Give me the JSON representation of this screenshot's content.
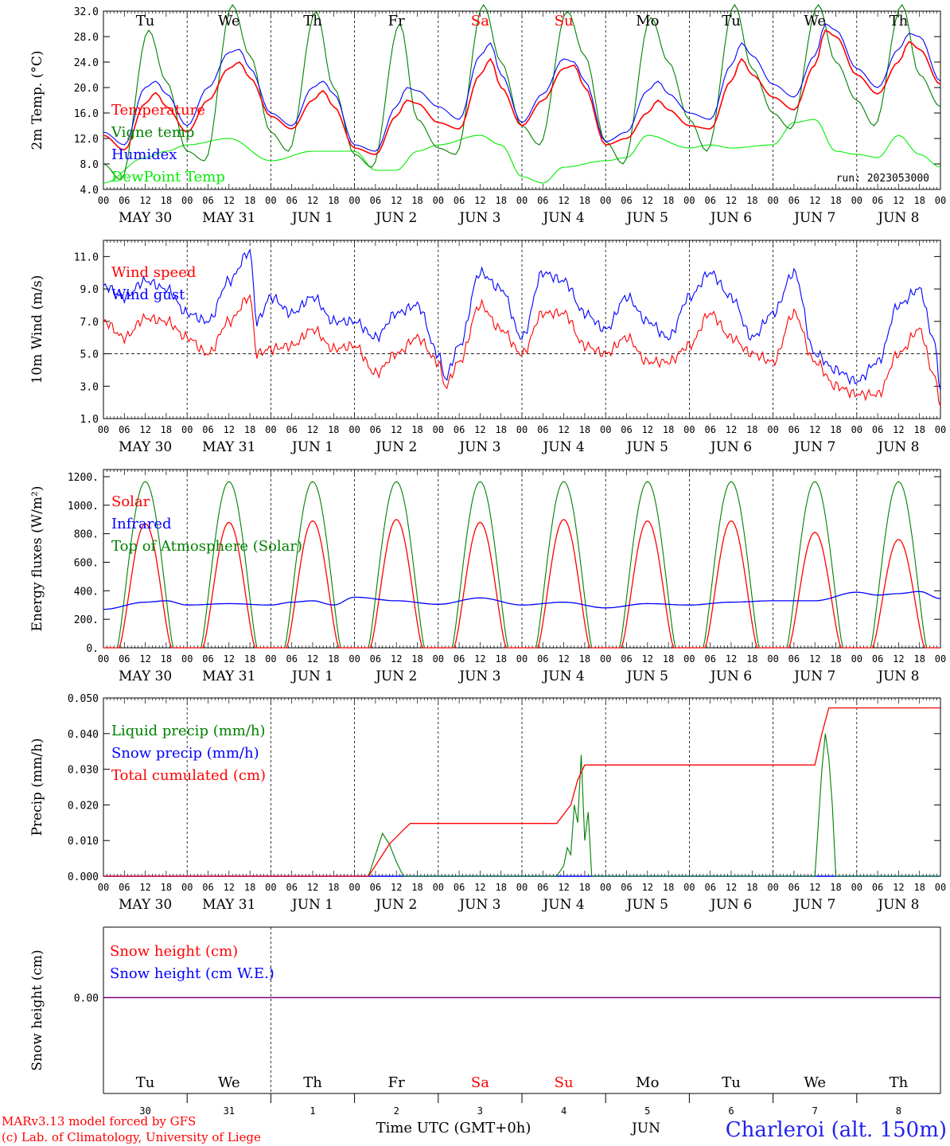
{
  "colors": {
    "red": "#ff0000",
    "blue": "#0000ff",
    "green": "#008000",
    "lime": "#00ee00",
    "purple": "#800080",
    "black": "#000000"
  },
  "days": [
    {
      "name": "Tu",
      "date": "MAY 30",
      "num": "30",
      "weekend": false
    },
    {
      "name": "We",
      "date": "MAY 31",
      "num": "31",
      "weekend": false
    },
    {
      "name": "Th",
      "date": "JUN  1",
      "num": "1",
      "weekend": false
    },
    {
      "name": "Fr",
      "date": "JUN  2",
      "num": "2",
      "weekend": false
    },
    {
      "name": "Sa",
      "date": "JUN  3",
      "num": "3",
      "weekend": true
    },
    {
      "name": "Su",
      "date": "JUN  4",
      "num": "4",
      "weekend": true
    },
    {
      "name": "Mo",
      "date": "JUN  5",
      "num": "5",
      "weekend": false
    },
    {
      "name": "Tu",
      "date": "JUN  6",
      "num": "6",
      "weekend": false
    },
    {
      "name": "We",
      "date": "JUN  7",
      "num": "7",
      "weekend": false
    },
    {
      "name": "Th",
      "date": "JUN  8",
      "num": "8",
      "weekend": false
    }
  ],
  "hour_ticks": [
    "00",
    "06",
    "12",
    "18"
  ],
  "chart_data": [
    {
      "type": "line",
      "ylabel": "2m Temp. (°C)",
      "ylim": [
        4.0,
        32.0
      ],
      "yticks": [
        "32.0",
        "28.0",
        "24.0",
        "20.0",
        "16.0",
        "12.0",
        "8.0",
        "4.0"
      ],
      "x_unit": "hours since 2023-05-30 00 UTC",
      "annotation": "run: 2023053000",
      "series": [
        {
          "name": "Temperature",
          "color": "#ff0000",
          "x": [
            0,
            6,
            12,
            15,
            18,
            24,
            30,
            36,
            39,
            42,
            48,
            54,
            60,
            63,
            66,
            72,
            78,
            84,
            87,
            90,
            96,
            102,
            108,
            111,
            114,
            120,
            126,
            132,
            135,
            138,
            144,
            150,
            156,
            159,
            162,
            168,
            174,
            180,
            183,
            186,
            192,
            198,
            204,
            207,
            210,
            216,
            222,
            228,
            231,
            234,
            240
          ],
          "y": [
            12.5,
            10.2,
            17.5,
            19.2,
            17,
            13,
            18,
            23,
            24,
            21.5,
            15.5,
            13.5,
            18,
            19.5,
            17,
            10.5,
            9.5,
            15.5,
            18,
            17.5,
            14.5,
            13.5,
            22,
            24.5,
            20,
            14,
            18,
            23,
            23.5,
            20,
            11,
            12,
            16,
            18,
            16.5,
            14,
            13.5,
            21,
            24.5,
            22,
            18.5,
            16.5,
            23.5,
            29,
            28,
            22,
            19,
            24,
            27.2,
            26,
            20.5
          ]
        },
        {
          "name": "Vigne temp",
          "color": "#008000",
          "x": [
            0,
            5,
            13,
            18,
            24,
            29,
            37,
            42,
            48,
            53,
            61,
            66,
            72,
            77,
            85,
            90,
            96,
            101,
            109,
            114,
            120,
            125,
            133,
            138,
            144,
            149,
            157,
            162,
            168,
            173,
            181,
            186,
            192,
            197,
            205,
            210,
            216,
            221,
            229,
            234,
            240
          ],
          "y": [
            8,
            5.5,
            29,
            21,
            10,
            8.5,
            33,
            25,
            13,
            10,
            32,
            20,
            9.5,
            7.5,
            30,
            15,
            10.5,
            9.5,
            33,
            24,
            14,
            11,
            32,
            25,
            11.5,
            8,
            31,
            24,
            15,
            10,
            33,
            23,
            16,
            13.5,
            33,
            24,
            18,
            14,
            33,
            22,
            17
          ]
        },
        {
          "name": "Humidex",
          "color": "#0000ff",
          "x": [
            0,
            6,
            12,
            15,
            18,
            24,
            30,
            36,
            39,
            42,
            48,
            54,
            60,
            63,
            66,
            72,
            78,
            84,
            87,
            90,
            96,
            102,
            108,
            111,
            114,
            120,
            126,
            132,
            135,
            138,
            144,
            150,
            156,
            159,
            162,
            168,
            174,
            180,
            183,
            186,
            192,
            198,
            204,
            207,
            210,
            216,
            222,
            228,
            231,
            234,
            240
          ],
          "y": [
            13,
            11,
            20,
            21,
            19,
            14,
            20,
            25.5,
            26,
            23,
            16,
            14,
            20,
            21,
            19,
            11,
            10,
            17,
            20,
            19.5,
            17,
            15,
            25,
            27,
            22,
            14.5,
            19,
            24.5,
            24,
            21,
            11.5,
            13,
            19.5,
            21,
            19,
            16,
            15,
            23.5,
            27,
            25,
            20.5,
            18.5,
            25,
            30,
            29,
            23,
            20,
            26,
            28.5,
            28,
            21
          ]
        },
        {
          "name": "DewPoint Temp",
          "color": "#00ee00",
          "x": [
            0,
            12,
            18,
            24,
            36,
            48,
            60,
            72,
            78,
            84,
            90,
            96,
            108,
            114,
            120,
            126,
            132,
            144,
            150,
            156,
            168,
            174,
            180,
            192,
            198,
            204,
            210,
            216,
            222,
            228,
            234,
            240
          ],
          "y": [
            5,
            9,
            10,
            11,
            12,
            8.5,
            10,
            10,
            7,
            7,
            10,
            11,
            12.5,
            11,
            6,
            5,
            7.5,
            8.5,
            9,
            12.5,
            10.5,
            11,
            10.5,
            11,
            14.5,
            15,
            10,
            9.5,
            9,
            12.5,
            9.5,
            7.5
          ]
        }
      ]
    },
    {
      "type": "line",
      "ylabel": "10m Wind (m/s)",
      "ylim": [
        1.0,
        12.0
      ],
      "yticks": [
        "11.0",
        "9.0",
        "7.0",
        "5.0",
        "3.0",
        "1.0"
      ],
      "reference_line": 5.0,
      "series": [
        {
          "name": "Wind speed",
          "color": "#ff0000",
          "x": [
            0,
            6,
            12,
            18,
            24,
            30,
            36,
            42,
            44,
            48,
            54,
            60,
            66,
            72,
            78,
            84,
            90,
            96,
            98,
            102,
            108,
            114,
            120,
            126,
            132,
            138,
            144,
            150,
            156,
            162,
            168,
            174,
            180,
            186,
            192,
            198,
            204,
            210,
            216,
            222,
            228,
            234,
            238,
            240
          ],
          "y": [
            7,
            6,
            7.2,
            7,
            6,
            5,
            7,
            8.5,
            5,
            5.3,
            5.5,
            6.5,
            5.3,
            5.5,
            3.8,
            5,
            6,
            4.5,
            3,
            4.5,
            8,
            6.5,
            5,
            7.5,
            7.5,
            5.5,
            5,
            6,
            4.5,
            4.5,
            5.5,
            7.5,
            6,
            5,
            4.5,
            7.5,
            4.5,
            3,
            2.5,
            2.5,
            5,
            6.5,
            3.8,
            2
          ]
        },
        {
          "name": "Wind gust",
          "color": "#0000ff",
          "x": [
            0,
            6,
            12,
            18,
            24,
            30,
            36,
            42,
            44,
            48,
            54,
            60,
            66,
            72,
            78,
            84,
            90,
            96,
            98,
            102,
            108,
            114,
            120,
            126,
            132,
            138,
            144,
            150,
            156,
            162,
            168,
            174,
            180,
            186,
            192,
            198,
            204,
            210,
            216,
            222,
            228,
            234,
            238,
            240
          ],
          "y": [
            9.2,
            8.5,
            9.5,
            9,
            7.5,
            7,
            9.5,
            11.3,
            7,
            8.5,
            7.5,
            8.5,
            7,
            7,
            6,
            7.5,
            8,
            5,
            3.5,
            5.5,
            10,
            9,
            6,
            10,
            9.5,
            7.5,
            6.5,
            8.5,
            7,
            6,
            8.5,
            10,
            8.5,
            6,
            7.5,
            10,
            5,
            4,
            3.3,
            4.5,
            8,
            9,
            6,
            3
          ]
        }
      ]
    },
    {
      "type": "line",
      "ylabel": "Energy fluxes (W/m²)",
      "ylim": [
        0,
        1250
      ],
      "yticks": [
        "1200.",
        "1000.",
        "800.",
        "600.",
        "400.",
        "200.",
        "0."
      ],
      "series": [
        {
          "name": "Solar",
          "color": "#ff0000",
          "peaks": [
            870,
            880,
            890,
            900,
            880,
            900,
            890,
            890,
            810,
            760
          ]
        },
        {
          "name": "Infrared",
          "color": "#0000ff",
          "x": [
            0,
            12,
            18,
            24,
            36,
            48,
            54,
            60,
            66,
            72,
            84,
            96,
            108,
            120,
            132,
            144,
            156,
            168,
            180,
            192,
            204,
            216,
            222,
            228,
            234,
            240
          ],
          "y": [
            270,
            320,
            330,
            300,
            310,
            300,
            320,
            330,
            300,
            355,
            330,
            305,
            350,
            300,
            320,
            280,
            310,
            300,
            320,
            330,
            330,
            390,
            370,
            380,
            395,
            345
          ]
        },
        {
          "name": "Top of Atmosphere (Solar)",
          "color": "#008000",
          "peak": 1165
        }
      ]
    },
    {
      "type": "line",
      "ylabel": "Precip (mm/h)",
      "ylim": [
        0.0,
        0.05
      ],
      "yticks": [
        "0.050",
        "0.040",
        "0.030",
        "0.020",
        "0.010",
        "0.000"
      ],
      "series": [
        {
          "name": "Liquid precip (mm/h)",
          "color": "#008000",
          "x": [
            0,
            76,
            78,
            80,
            82,
            84,
            86,
            130,
            132,
            133,
            134,
            135,
            136,
            137,
            138,
            139,
            140,
            204,
            205,
            206,
            207,
            208,
            209,
            210,
            240
          ],
          "y": [
            0,
            0,
            0.006,
            0.012,
            0.009,
            0.004,
            0,
            0,
            0.003,
            0.008,
            0.006,
            0.02,
            0.015,
            0.034,
            0.01,
            0.018,
            0,
            0,
            0.015,
            0.03,
            0.04,
            0.033,
            0.02,
            0,
            0
          ]
        },
        {
          "name": "Snow precip (mm/h)",
          "color": "#0000ff",
          "x": [
            0,
            240
          ],
          "y": [
            0,
            0
          ]
        },
        {
          "name": "Total cumulated (cm)",
          "color": "#ff0000",
          "x": [
            0,
            76,
            78,
            82,
            86,
            88,
            130,
            134,
            136,
            138,
            140,
            204,
            206,
            208,
            210,
            240
          ],
          "y": [
            0,
            0,
            0.003,
            0.009,
            0.013,
            0.0148,
            0.0148,
            0.02,
            0.027,
            0.0312,
            0.0312,
            0.0312,
            0.04,
            0.0472,
            0.0472,
            0.0472
          ]
        }
      ]
    },
    {
      "type": "line",
      "ylabel": "Snow height (cm)",
      "yticks": [
        "0.00"
      ],
      "series": [
        {
          "name": "Snow height (cm)",
          "color": "#ff0000",
          "x": [
            0,
            240
          ],
          "y": [
            0,
            0
          ]
        },
        {
          "name": "Snow height (cm W.E.)",
          "color": "#0000ff",
          "x": [
            0,
            240
          ],
          "y": [
            0,
            0
          ]
        }
      ]
    }
  ],
  "footer": {
    "xlabel": "Time UTC (GMT+0h)",
    "month": "JUN",
    "credit1": "MARv3.13 model forced by GFS",
    "credit2": "(c) Lab. of Climatology, University of Liege",
    "station": "Charleroi (alt. 150m)"
  }
}
